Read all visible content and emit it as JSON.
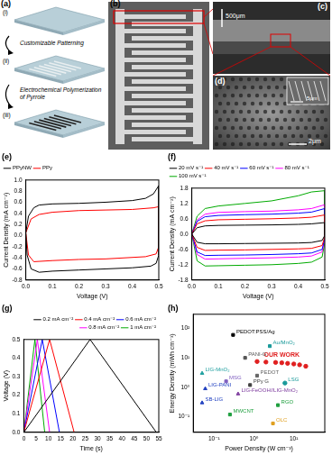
{
  "figure": {
    "panels": [
      {
        "label": "(a)",
        "steps": [
          "(i)",
          "(ii)",
          "(iii)"
        ],
        "captions": [
          "Customizable Patterning",
          "Electrochemical Polymerization of Pyrrole"
        ]
      },
      {
        "label": "(b)"
      },
      {
        "label": "(c)",
        "scale_bar": "500μm"
      },
      {
        "label": "(d)",
        "scale_bar": "2μm",
        "inset_scale_bar": "5μm"
      }
    ]
  },
  "chart_data": [
    {
      "type": "line",
      "title": "(e)",
      "x_label": "Voltage (V)",
      "y_label": "Current Density (mA cm⁻²)",
      "xlim": [
        0,
        0.5
      ],
      "xticks": [
        {
          "value": 0,
          "label": "0.0"
        },
        0.1,
        0.2,
        0.3,
        0.4,
        0.5
      ],
      "ylim": [
        -0.8,
        1.0
      ],
      "yticks": [
        -0.8,
        -0.6,
        -0.4,
        -0.2,
        {
          "value": 0,
          "label": "0.0"
        },
        0.2,
        0.4,
        0.6,
        0.8,
        {
          "value": 1.0,
          "label": "1.0"
        }
      ],
      "grid": false,
      "legend": "top-left",
      "series": [
        {
          "name": "PPyNW",
          "color": "#000000",
          "line_style": "solid",
          "x": [
            0,
            0.01,
            0.03,
            0.05,
            0.1,
            0.2,
            0.3,
            0.4,
            0.45,
            0.48,
            0.5,
            0.5,
            0.49,
            0.47,
            0.4,
            0.3,
            0.2,
            0.1,
            0.05,
            0.02,
            0.005,
            0
          ],
          "values": [
            0.05,
            0.35,
            0.5,
            0.55,
            0.57,
            0.58,
            0.6,
            0.63,
            0.67,
            0.75,
            0.9,
            -0.35,
            -0.5,
            -0.55,
            -0.58,
            -0.6,
            -0.62,
            -0.64,
            -0.66,
            -0.6,
            -0.35,
            0.05
          ]
        },
        {
          "name": "PPy",
          "color": "#ff0000",
          "line_style": "solid",
          "x": [
            0,
            0.02,
            0.05,
            0.1,
            0.2,
            0.3,
            0.4,
            0.48,
            0.5,
            0.5,
            0.49,
            0.45,
            0.3,
            0.2,
            0.1,
            0.03,
            0.01,
            0
          ],
          "values": [
            0.05,
            0.3,
            0.38,
            0.42,
            0.45,
            0.46,
            0.47,
            0.5,
            0.52,
            -0.2,
            -0.33,
            -0.38,
            -0.42,
            -0.43,
            -0.45,
            -0.47,
            -0.35,
            0.05
          ]
        }
      ]
    },
    {
      "type": "line",
      "title": "(f)",
      "x_label": "Voltage (V)",
      "y_label": "Current Density (mA cm⁻²)",
      "xlim": [
        0,
        0.5
      ],
      "xticks": [
        {
          "value": 0,
          "label": "0.0"
        },
        0.1,
        0.2,
        0.3,
        0.4,
        0.5
      ],
      "ylim": [
        -1.8,
        1.8
      ],
      "yticks": [
        -1.8,
        -1.2,
        -0.6,
        {
          "value": 0,
          "label": "0.0"
        },
        0.6,
        1.2,
        1.8
      ],
      "grid": false,
      "legend": "top-left",
      "series": [
        {
          "name": "20 mV s⁻¹",
          "color": "#000000",
          "line_style": "solid",
          "x": [
            0,
            0.02,
            0.05,
            0.1,
            0.2,
            0.3,
            0.4,
            0.45,
            0.5,
            0.5,
            0.49,
            0.45,
            0.4,
            0.3,
            0.2,
            0.1,
            0.05,
            0.02,
            0
          ],
          "values": [
            0.0,
            0.25,
            0.32,
            0.34,
            0.35,
            0.36,
            0.38,
            0.4,
            0.45,
            -0.05,
            -0.25,
            -0.33,
            -0.35,
            -0.36,
            -0.37,
            -0.38,
            -0.38,
            -0.32,
            0.0
          ]
        },
        {
          "name": "40 mV s⁻¹",
          "color": "#ff0000",
          "line_style": "solid",
          "x": [
            0,
            0.02,
            0.05,
            0.1,
            0.2,
            0.3,
            0.4,
            0.45,
            0.5,
            0.5,
            0.49,
            0.45,
            0.4,
            0.3,
            0.2,
            0.1,
            0.05,
            0.02,
            0
          ],
          "values": [
            0.0,
            0.4,
            0.52,
            0.56,
            0.58,
            0.6,
            0.63,
            0.66,
            0.75,
            -0.1,
            -0.45,
            -0.56,
            -0.58,
            -0.6,
            -0.62,
            -0.63,
            -0.64,
            -0.52,
            0.0
          ]
        },
        {
          "name": "60 mV s⁻¹",
          "color": "#0000ff",
          "line_style": "solid",
          "x": [
            0,
            0.02,
            0.05,
            0.1,
            0.2,
            0.3,
            0.4,
            0.45,
            0.5,
            0.5,
            0.49,
            0.45,
            0.4,
            0.3,
            0.2,
            0.1,
            0.05,
            0.02,
            0
          ],
          "values": [
            0.0,
            0.5,
            0.68,
            0.73,
            0.76,
            0.78,
            0.82,
            0.86,
            1.0,
            -0.15,
            -0.6,
            -0.74,
            -0.77,
            -0.8,
            -0.82,
            -0.83,
            -0.84,
            -0.7,
            0.0
          ]
        },
        {
          "name": "80 mV s⁻¹",
          "color": "#ff00ff",
          "line_style": "solid",
          "x": [
            0,
            0.02,
            0.05,
            0.1,
            0.2,
            0.3,
            0.4,
            0.45,
            0.5,
            0.5,
            0.49,
            0.45,
            0.4,
            0.3,
            0.2,
            0.1,
            0.05,
            0.02,
            0
          ],
          "values": [
            0.0,
            0.55,
            0.78,
            0.85,
            0.88,
            0.9,
            0.95,
            1.0,
            1.15,
            -0.2,
            -0.7,
            -0.86,
            -0.9,
            -0.93,
            -0.95,
            -0.97,
            -0.98,
            -0.8,
            0.0
          ]
        },
        {
          "name": "100 mV s⁻¹",
          "color": "#00aa00",
          "line_style": "solid",
          "x": [
            0,
            0.02,
            0.05,
            0.1,
            0.2,
            0.3,
            0.4,
            0.45,
            0.5,
            0.5,
            0.49,
            0.45,
            0.4,
            0.3,
            0.2,
            0.1,
            0.05,
            0.02,
            0
          ],
          "values": [
            0.0,
            0.7,
            1.0,
            1.1,
            1.2,
            1.3,
            1.5,
            1.65,
            1.7,
            -0.3,
            -0.9,
            -1.1,
            -1.15,
            -1.2,
            -1.22,
            -1.24,
            -1.25,
            -1.05,
            0.0
          ]
        }
      ]
    },
    {
      "type": "line",
      "title": "(g)",
      "x_label": "Time (s)",
      "y_label": "Voltage (V)",
      "xlim": [
        0,
        55
      ],
      "xticks": [
        0,
        5,
        10,
        15,
        20,
        25,
        30,
        35,
        40,
        45,
        50,
        55
      ],
      "ylim": [
        0,
        0.5
      ],
      "yticks": [
        {
          "value": 0,
          "label": "0.0"
        },
        0.1,
        0.2,
        0.3,
        0.4,
        0.5
      ],
      "grid": false,
      "legend": "top-right",
      "series": [
        {
          "name": "0.2 mA cm⁻²",
          "color": "#000000",
          "line_style": "solid",
          "x": [
            0,
            27,
            54
          ],
          "values": [
            0,
            0.5,
            0
          ]
        },
        {
          "name": "0.4 mA cm⁻²",
          "color": "#ff0000",
          "line_style": "solid",
          "x": [
            0,
            10.5,
            20.5
          ],
          "values": [
            0,
            0.5,
            0
          ]
        },
        {
          "name": "0.6 mA cm⁻²",
          "color": "#0000ff",
          "line_style": "solid",
          "x": [
            0,
            7.5,
            14.5
          ],
          "values": [
            0,
            0.5,
            0
          ]
        },
        {
          "name": "0.8 mA cm⁻²",
          "color": "#ff00ff",
          "line_style": "solid",
          "x": [
            0,
            5.5,
            10.5
          ],
          "values": [
            0,
            0.5,
            0
          ]
        },
        {
          "name": "1 mA cm⁻²",
          "color": "#00aa00",
          "line_style": "solid",
          "x": [
            0,
            4.5,
            8.5
          ],
          "values": [
            0,
            0.5,
            0
          ]
        }
      ]
    },
    {
      "type": "scatter",
      "title": "(h)",
      "x_label": "Power Density (W cm⁻³)",
      "y_label": "Energy Density (mWh cm⁻³)",
      "log": true,
      "grid": false,
      "xlim": [
        0.03,
        60
      ],
      "xticks": [
        {
          "value": 0.1,
          "label": "10⁻¹"
        },
        {
          "value": 1,
          "label": "10⁰"
        },
        {
          "value": 10,
          "label": "10¹"
        }
      ],
      "ylim": [
        0.03,
        300
      ],
      "yticks": [
        {
          "value": 0.1,
          "label": "10⁻¹"
        },
        {
          "value": 1,
          "label": "10⁰"
        },
        {
          "value": 10,
          "label": "10¹"
        },
        {
          "value": 100,
          "label": "10²"
        }
      ],
      "series": [
        {
          "name": "OUR WORK",
          "color": "#e02020",
          "marker": "circle",
          "x": [
            1.2,
            2,
            3.5,
            5,
            7,
            10,
            14,
            20
          ],
          "values": [
            7.5,
            7.2,
            7,
            6.8,
            6.5,
            6.2,
            5.8,
            5.2
          ]
        },
        {
          "name": "PEDOT:PSS/Ag",
          "color": "#000000",
          "marker": "square",
          "x": [
            0.3
          ],
          "values": [
            60
          ]
        },
        {
          "name": "Au/MnO₂",
          "color": "#1a9a9a",
          "marker": "square",
          "x": [
            2.5
          ],
          "values": [
            25
          ]
        },
        {
          "name": "PANI-G",
          "color": "#555555",
          "marker": "square",
          "x": [
            0.6
          ],
          "values": [
            10
          ]
        },
        {
          "name": "LIG-MnO₂",
          "color": "#20a0a0",
          "marker": "triangle",
          "x": [
            0.05
          ],
          "values": [
            3
          ]
        },
        {
          "name": "PEDOT",
          "color": "#666666",
          "marker": "square",
          "x": [
            1.2
          ],
          "values": [
            2.5
          ]
        },
        {
          "name": "MSG",
          "color": "#8060c0",
          "marker": "square",
          "x": [
            0.2
          ],
          "values": [
            1.6
          ]
        },
        {
          "name": "PPy G",
          "color": "#404040",
          "marker": "square",
          "x": [
            0.8
          ],
          "values": [
            1.2
          ]
        },
        {
          "name": "LSG",
          "color": "#1a9a9a",
          "marker": "circle",
          "x": [
            6
          ],
          "values": [
            1.4
          ]
        },
        {
          "name": "LIG-PANI",
          "color": "#2040c0",
          "marker": "triangle",
          "x": [
            0.06
          ],
          "values": [
            0.9
          ]
        },
        {
          "name": "LIG-FeOOH//LIG-MnO₂",
          "color": "#8040a0",
          "marker": "triangle",
          "x": [
            0.4
          ],
          "values": [
            0.6
          ]
        },
        {
          "name": "SB-LIG",
          "color": "#2040c0",
          "marker": "triangle",
          "x": [
            0.05
          ],
          "values": [
            0.3
          ]
        },
        {
          "name": "MWCNT",
          "color": "#20a040",
          "marker": "square",
          "x": [
            0.25
          ],
          "values": [
            0.12
          ]
        },
        {
          "name": "RGO",
          "color": "#20a040",
          "marker": "square",
          "x": [
            4
          ],
          "values": [
            0.25
          ]
        },
        {
          "name": "OLC",
          "color": "#e0a020",
          "marker": "square",
          "x": [
            3
          ],
          "values": [
            0.06
          ]
        }
      ]
    }
  ]
}
